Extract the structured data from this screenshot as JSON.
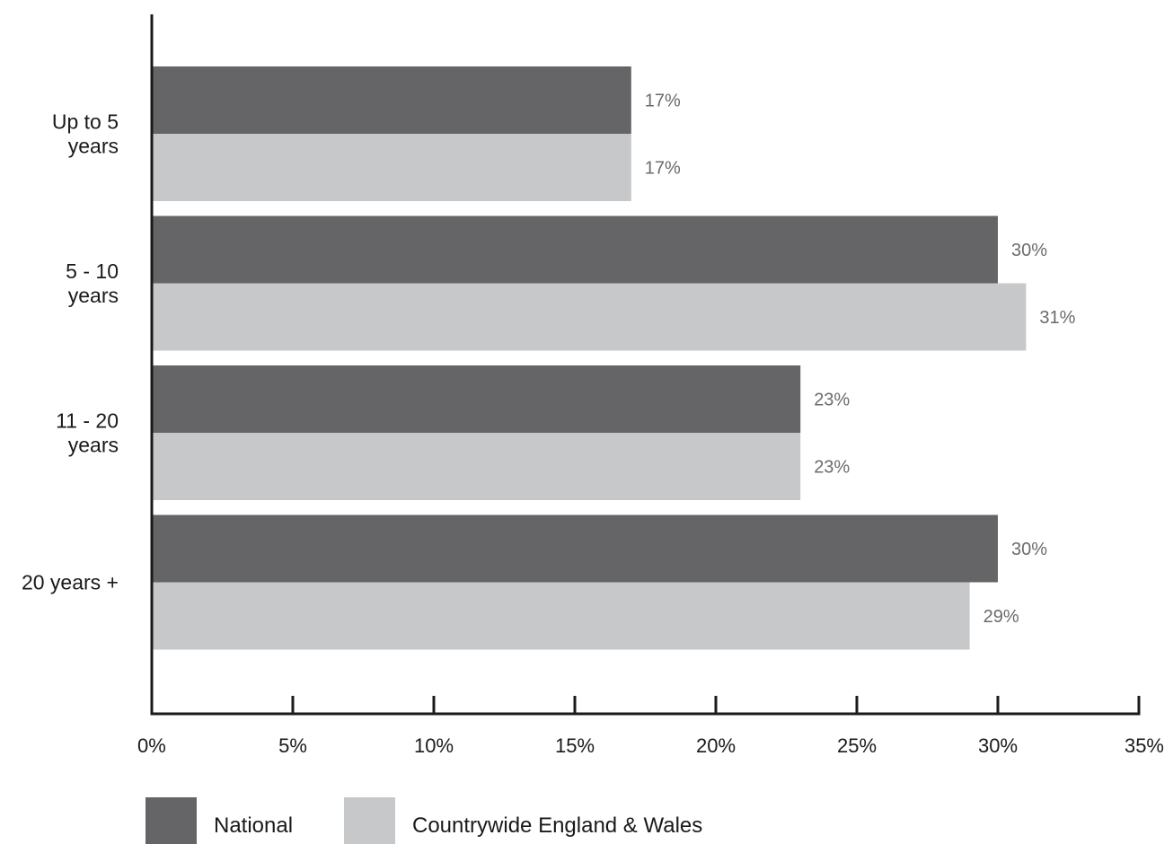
{
  "chart_data": {
    "type": "bar",
    "orientation": "horizontal",
    "categories": [
      [
        "Up to 5",
        "years"
      ],
      [
        "5 - 10",
        "years"
      ],
      [
        "11 - 20",
        "years"
      ],
      [
        "20 years +"
      ]
    ],
    "series": [
      {
        "name": "National",
        "color": "#656567",
        "values": [
          17,
          30,
          23,
          30
        ],
        "labels": [
          "17%",
          "30%",
          "23%",
          "30%"
        ]
      },
      {
        "name": "Countrywide England & Wales",
        "color": "#c7c8ca",
        "values": [
          17,
          31,
          23,
          29
        ],
        "labels": [
          "17%",
          "31%",
          "23%",
          "29%"
        ]
      }
    ],
    "xlim": [
      0,
      35
    ],
    "xticks": [
      0,
      5,
      10,
      15,
      20,
      25,
      30,
      35
    ],
    "xtick_labels": [
      "0%",
      "5%",
      "10%",
      "15%",
      "20%",
      "25%",
      "30%",
      "35%"
    ],
    "grid": false,
    "legend": "bottom-left"
  }
}
